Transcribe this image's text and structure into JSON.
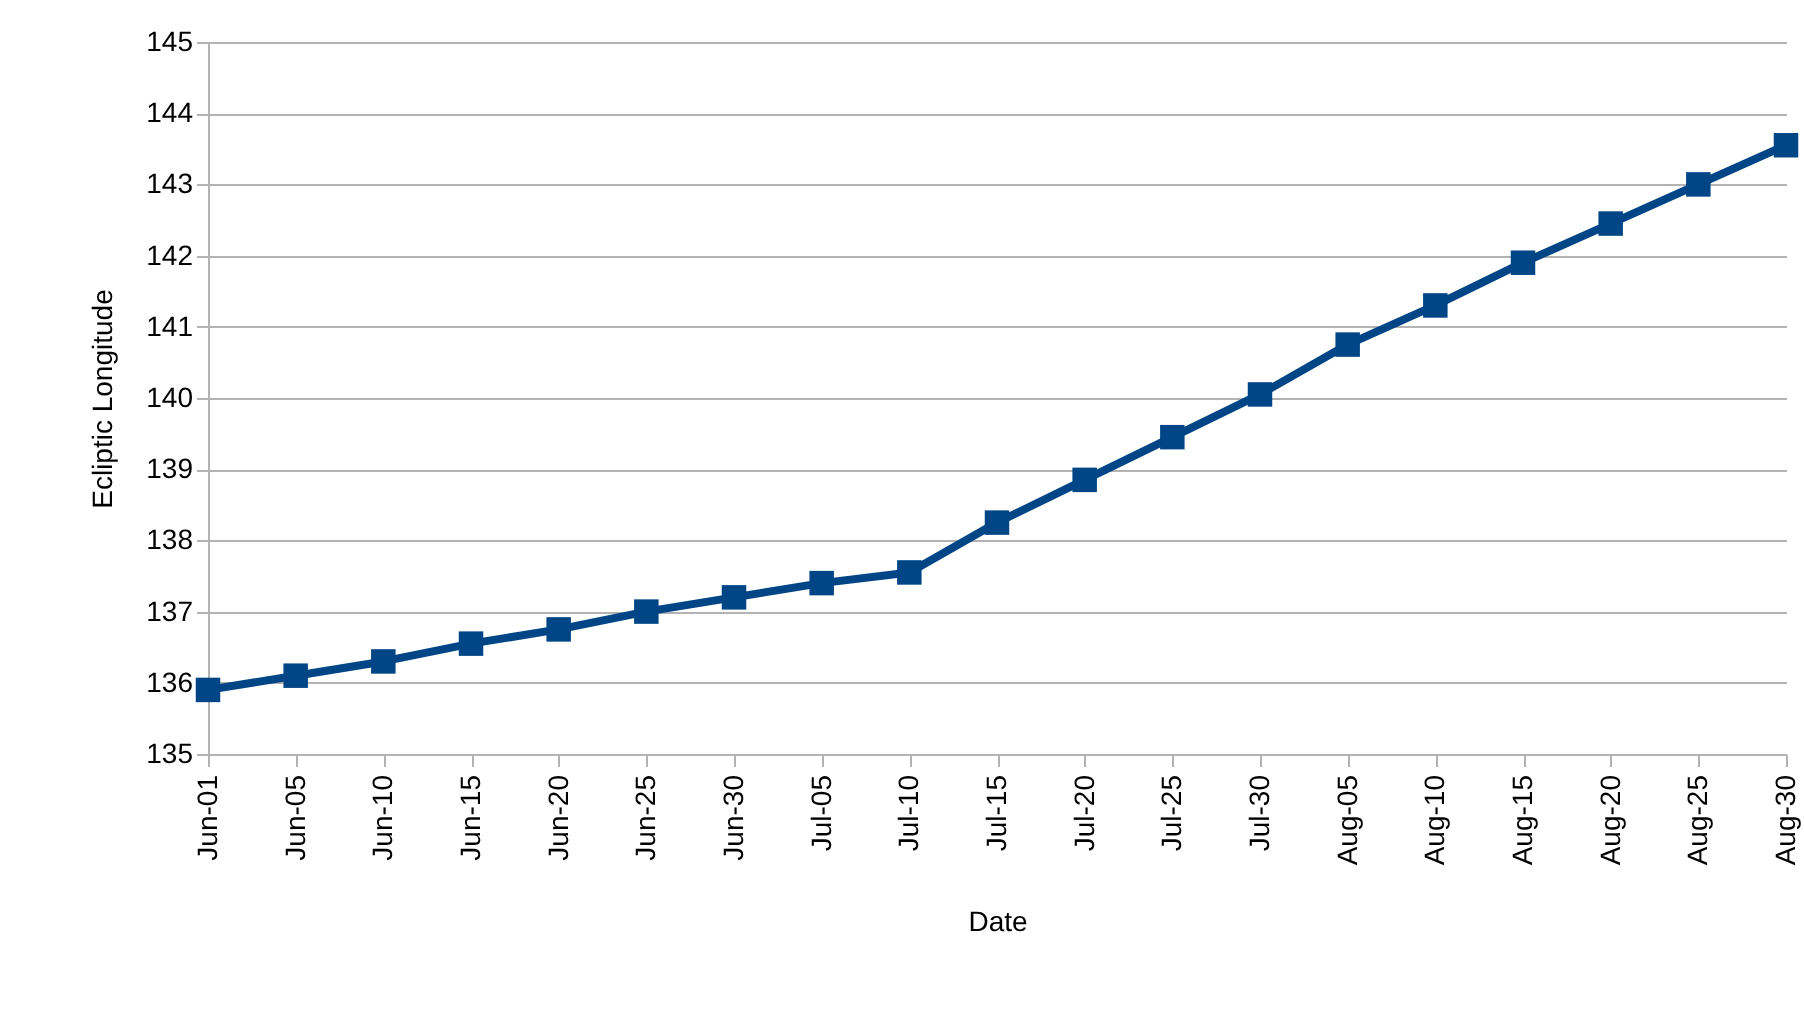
{
  "chart_data": {
    "type": "line",
    "xlabel": "Date",
    "ylabel": "Ecliptic Longitude",
    "categories": [
      "Jun-01",
      "Jun-05",
      "Jun-10",
      "Jun-15",
      "Jun-20",
      "Jun-25",
      "Jun-30",
      "Jul-05",
      "Jul-10",
      "Jul-15",
      "Jul-20",
      "Jul-25",
      "Jul-30",
      "Aug-05",
      "Aug-10",
      "Aug-15",
      "Aug-20",
      "Aug-25",
      "Aug-30"
    ],
    "series": [
      {
        "color": "#004586",
        "values": [
          135.9,
          136.1,
          136.3,
          136.55,
          136.75,
          137.0,
          137.2,
          137.4,
          137.55,
          138.25,
          138.85,
          139.45,
          140.05,
          140.75,
          141.3,
          141.9,
          142.45,
          143.0,
          143.55
        ]
      }
    ],
    "ylim": [
      135,
      145
    ],
    "yticks": [
      135,
      136,
      137,
      138,
      139,
      140,
      141,
      142,
      143,
      144,
      145
    ],
    "grid": "y",
    "marker": "square",
    "line_style": "solid"
  }
}
